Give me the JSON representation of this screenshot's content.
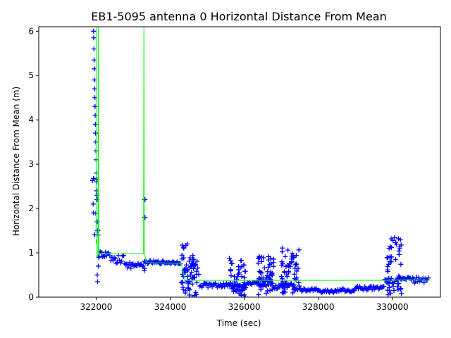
{
  "chart_data": {
    "type": "scatter",
    "title": "EB1-5095 antenna 0 Horizontal Distance From Mean",
    "xlabel": "Time (sec)",
    "ylabel": "Horizontal Distance From Mean (m)",
    "xlim": [
      320450,
      331300
    ],
    "ylim": [
      0,
      6.1
    ],
    "xticks": [
      322000,
      324000,
      326000,
      328000,
      330000
    ],
    "yticks": [
      0,
      1,
      2,
      3,
      4,
      5,
      6
    ],
    "grid": false,
    "legend": "none",
    "colors": {
      "points": "#0000ff",
      "line": "#00ff00"
    },
    "series": [
      {
        "kind": "points",
        "marker": "+",
        "points": [
          [
            321930,
            6.0
          ],
          [
            321935,
            5.85
          ],
          [
            321940,
            5.6
          ],
          [
            321945,
            5.35
          ],
          [
            321950,
            5.15
          ],
          [
            321955,
            4.9
          ],
          [
            321960,
            4.7
          ],
          [
            321965,
            4.5
          ],
          [
            321970,
            4.3
          ],
          [
            321975,
            4.1
          ],
          [
            321980,
            3.9
          ],
          [
            321985,
            3.7
          ],
          [
            321990,
            3.5
          ],
          [
            321995,
            3.3
          ],
          [
            322000,
            3.1
          ],
          [
            322005,
            2.8
          ],
          [
            322010,
            2.6
          ],
          [
            322015,
            2.4
          ],
          [
            322020,
            2.3
          ],
          [
            322025,
            2.2
          ],
          [
            321920,
            2.1
          ],
          [
            321925,
            1.9
          ],
          [
            322030,
            1.7
          ],
          [
            322040,
            1.5
          ],
          [
            322050,
            1.4
          ],
          [
            322030,
            0.5
          ],
          [
            322040,
            0.35
          ],
          [
            322060,
            0.7
          ],
          [
            322070,
            0.9
          ],
          [
            323310,
            2.2
          ],
          [
            323320,
            2.2
          ],
          [
            323310,
            1.8
          ],
          [
            323320,
            1.8
          ],
          [
            323300,
            0.6
          ],
          [
            323310,
            0.65
          ]
        ],
        "bands": [
          {
            "x": [
              321900,
              322080
            ],
            "y": [
              1.3,
              2.8
            ]
          },
          {
            "x": [
              322080,
              322400
            ],
            "y": [
              0.9,
              1.05
            ]
          },
          {
            "x": [
              322400,
              322800
            ],
            "y": [
              0.75,
              0.95
            ]
          },
          {
            "x": [
              322800,
              323300
            ],
            "y": [
              0.65,
              0.8
            ]
          },
          {
            "x": [
              323300,
              324300
            ],
            "y": [
              0.75,
              0.82
            ]
          },
          {
            "x": [
              324300,
              324800
            ],
            "y": [
              0.3,
              0.75
            ]
          },
          {
            "x": [
              324800,
              325300
            ],
            "y": [
              0.22,
              0.32
            ]
          },
          {
            "x": [
              325300,
              326000
            ],
            "y": [
              0.22,
              0.32
            ]
          },
          {
            "x": [
              326000,
              326400
            ],
            "y": [
              0.25,
              0.35
            ]
          },
          {
            "x": [
              326400,
              326800
            ],
            "y": [
              0.25,
              0.38
            ]
          },
          {
            "x": [
              326800,
              327100
            ],
            "y": [
              0.18,
              0.3
            ]
          },
          {
            "x": [
              327100,
              327500
            ],
            "y": [
              0.15,
              0.35
            ]
          },
          {
            "x": [
              327500,
              328000
            ],
            "y": [
              0.13,
              0.2
            ]
          },
          {
            "x": [
              328000,
              328500
            ],
            "y": [
              0.1,
              0.16
            ]
          },
          {
            "x": [
              328500,
              329000
            ],
            "y": [
              0.1,
              0.2
            ]
          },
          {
            "x": [
              329000,
              329800
            ],
            "y": [
              0.15,
              0.25
            ]
          },
          {
            "x": [
              329800,
              330200
            ],
            "y": [
              0.3,
              0.45
            ]
          },
          {
            "x": [
              330200,
              330600
            ],
            "y": [
              0.38,
              0.45
            ]
          },
          {
            "x": [
              330600,
              331000
            ],
            "y": [
              0.3,
              0.45
            ]
          }
        ],
        "bursts": [
          {
            "x": [
              324300,
              324500
            ],
            "y": [
              0.05,
              1.3
            ]
          },
          {
            "x": [
              324500,
              324750
            ],
            "y": [
              0.0,
              0.95
            ]
          },
          {
            "x": [
              325600,
              325750
            ],
            "y": [
              0.05,
              1.0
            ]
          },
          {
            "x": [
              325750,
              326050
            ],
            "y": [
              0.0,
              0.85
            ]
          },
          {
            "x": [
              326350,
              326800
            ],
            "y": [
              0.05,
              0.98
            ]
          },
          {
            "x": [
              327000,
              327500
            ],
            "y": [
              0.05,
              1.12
            ]
          },
          {
            "x": [
              329850,
              330250
            ],
            "y": [
              0.05,
              1.35
            ]
          }
        ]
      },
      {
        "kind": "line",
        "points": [
          [
            322000,
            6.1
          ],
          [
            322000,
            1.2
          ],
          [
            322020,
            1.3
          ],
          [
            322030,
            0.9
          ],
          [
            322050,
            0.95
          ],
          [
            322060,
            6.1
          ],
          [
            322060,
            6.1
          ],
          [
            322070,
            1.0
          ],
          [
            322100,
            0.98
          ],
          [
            323280,
            0.98
          ],
          [
            323290,
            6.1
          ],
          [
            323290,
            6.1
          ],
          [
            323300,
            1.0
          ],
          [
            323350,
            0.78
          ],
          [
            324300,
            0.76
          ],
          [
            324400,
            0.38
          ],
          [
            329800,
            0.38
          ],
          [
            330400,
            0.39
          ],
          [
            331000,
            0.38
          ]
        ]
      }
    ]
  }
}
